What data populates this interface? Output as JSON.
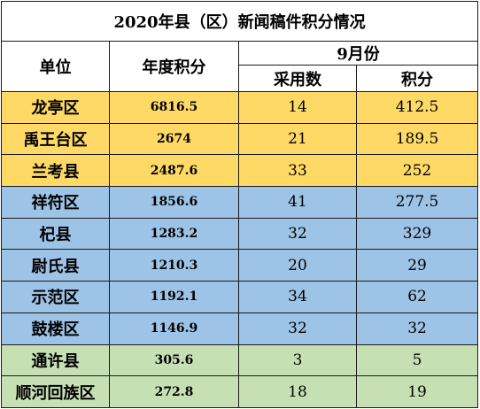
{
  "title": "2020年县（区）新闻稿件积分情况",
  "headers": {
    "unit": "单位",
    "annual": "年度积分",
    "month": "9月份",
    "adopted": "采用数",
    "points": "积分"
  },
  "colors": {
    "yellow": "#ffd966",
    "blue": "#9dc3e6",
    "green": "#c6e0b4",
    "border": "#1a1a1a"
  },
  "rows": [
    {
      "unit": "龙亭区",
      "annual": "6816.5",
      "adopted": "14",
      "points": "412.5",
      "group": "yellow"
    },
    {
      "unit": "禹王台区",
      "annual": "2674",
      "adopted": "21",
      "points": "189.5",
      "group": "yellow"
    },
    {
      "unit": "兰考县",
      "annual": "2487.6",
      "adopted": "33",
      "points": "252",
      "group": "yellow"
    },
    {
      "unit": "祥符区",
      "annual": "1856.6",
      "adopted": "41",
      "points": "277.5",
      "group": "blue"
    },
    {
      "unit": "杞县",
      "annual": "1283.2",
      "adopted": "32",
      "points": "329",
      "group": "blue"
    },
    {
      "unit": "尉氏县",
      "annual": "1210.3",
      "adopted": "20",
      "points": "29",
      "group": "blue"
    },
    {
      "unit": "示范区",
      "annual": "1192.1",
      "adopted": "34",
      "points": "62",
      "group": "blue"
    },
    {
      "unit": "鼓楼区",
      "annual": "1146.9",
      "adopted": "32",
      "points": "32",
      "group": "blue"
    },
    {
      "unit": "通许县",
      "annual": "305.6",
      "adopted": "3",
      "points": "5",
      "group": "green"
    },
    {
      "unit": "顺河回族区",
      "annual": "272.8",
      "adopted": "18",
      "points": "19",
      "group": "green"
    }
  ]
}
